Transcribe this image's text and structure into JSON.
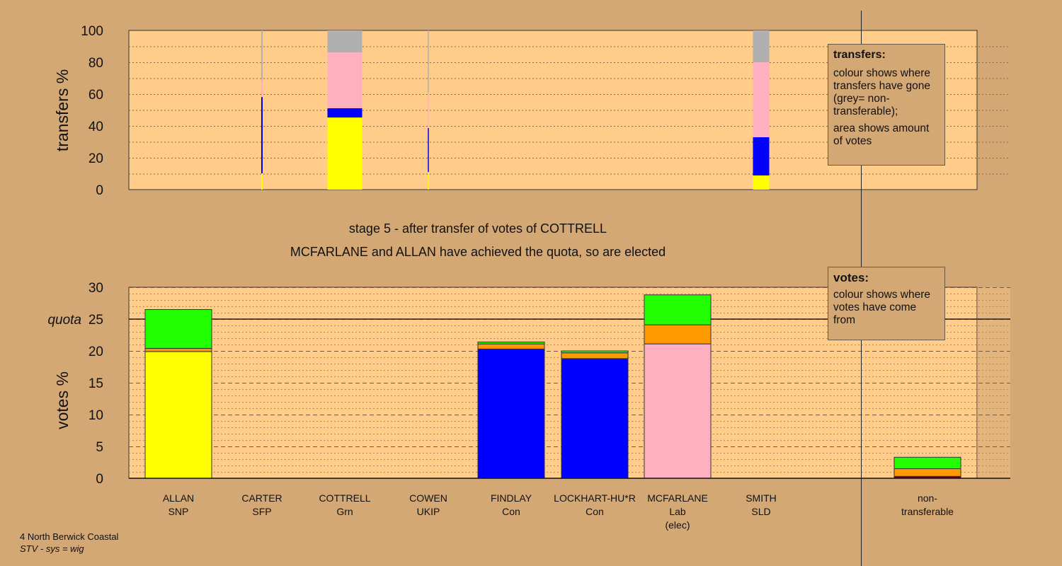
{
  "colors": {
    "bg": "#D4A875",
    "plot": "#FFCC8A",
    "SNP": "#FFFF00",
    "Con": "#0000FF",
    "Lab": "#FFB0C0",
    "Grn": "#22FF00",
    "Other": "#FF9900",
    "Nontrans": "#B0B0B0",
    "dark": "#5a0030"
  },
  "chart_data": [
    {
      "type": "bar",
      "title": "transfers",
      "ylabel": "transfers %",
      "ylim": [
        0,
        100
      ],
      "yticks": [
        0,
        20,
        40,
        60,
        80,
        100
      ],
      "note": "bar width shows amount of votes transferred",
      "bars": [
        {
          "candidate": "CARTER",
          "weight": 0.2,
          "segments": [
            {
              "to": "SNP",
              "value": 10.2
            },
            {
              "to": "Con",
              "value": 48
            },
            {
              "to": "Lab",
              "value": 10.8
            },
            {
              "to": "Nontrans",
              "value": 31
            }
          ]
        },
        {
          "candidate": "COTTRELL",
          "weight": 4.9,
          "segments": [
            {
              "to": "SNP",
              "value": 45.3
            },
            {
              "to": "Con",
              "value": 5.8
            },
            {
              "to": "Lab",
              "value": 35.1
            },
            {
              "to": "Nontrans",
              "value": 13.8
            }
          ]
        },
        {
          "candidate": "COWEN",
          "weight": 0.1,
          "segments": [
            {
              "to": "SNP",
              "value": 11
            },
            {
              "to": "Con",
              "value": 27.7
            },
            {
              "to": "Lab",
              "value": 22.3
            },
            {
              "to": "Nontrans",
              "value": 39
            }
          ]
        },
        {
          "candidate": "SMITH",
          "weight": 2.3,
          "segments": [
            {
              "to": "SNP",
              "value": 8.9
            },
            {
              "to": "Con",
              "value": 24
            },
            {
              "to": "Lab",
              "value": 47.1
            },
            {
              "to": "Nontrans",
              "value": 20
            }
          ]
        }
      ]
    },
    {
      "type": "bar",
      "title": "votes",
      "ylabel": "votes %",
      "ylim": [
        0,
        30
      ],
      "yticks": [
        0,
        5,
        10,
        15,
        20,
        25,
        30
      ],
      "quota": 25,
      "quota_label": "quota",
      "categories": [
        {
          "name": "ALLAN",
          "party": "SNP",
          "extra": "",
          "segments": [
            {
              "from": "SNP",
              "value": 19.9
            },
            {
              "from": "Other",
              "value": 0.5
            },
            {
              "from": "Grn",
              "value": 6.1
            }
          ]
        },
        {
          "name": "CARTER",
          "party": "SFP",
          "extra": "",
          "segments": []
        },
        {
          "name": "COTTRELL",
          "party": "Grn",
          "extra": "",
          "segments": []
        },
        {
          "name": "COWEN",
          "party": "UKIP",
          "extra": "",
          "segments": []
        },
        {
          "name": "FINDLAY",
          "party": "Con",
          "extra": "",
          "segments": [
            {
              "from": "Con",
              "value": 20.3
            },
            {
              "from": "Other",
              "value": 0.8
            },
            {
              "from": "Grn",
              "value": 0.3
            }
          ]
        },
        {
          "name": "LOCKHART-HU*R",
          "party": "Con",
          "extra": "",
          "segments": [
            {
              "from": "Con",
              "value": 18.8
            },
            {
              "from": "Other",
              "value": 0.9
            },
            {
              "from": "Grn",
              "value": 0.3
            }
          ]
        },
        {
          "name": "MCFARLANE",
          "party": "Lab",
          "extra": "(elec)",
          "segments": [
            {
              "from": "Lab",
              "value": 21.1
            },
            {
              "from": "Other",
              "value": 3.0
            },
            {
              "from": "Grn",
              "value": 4.7
            }
          ]
        },
        {
          "name": "SMITH",
          "party": "SLD",
          "extra": "",
          "segments": []
        },
        {
          "name": "non-",
          "party": "transferable",
          "extra": "",
          "segments": [
            {
              "from": "dark",
              "value": 0.3
            },
            {
              "from": "Other",
              "value": 1.2
            },
            {
              "from": "Grn",
              "value": 1.8
            }
          ]
        }
      ]
    }
  ],
  "stage_title": "stage 5 - after transfer of votes of COTTRELL",
  "stage_subtitle": "MCFARLANE and ALLAN have achieved the quota, so are elected",
  "legend_transfers": {
    "heading": "transfers:",
    "p1": "colour shows where transfers have gone (grey= non-transferable);",
    "p2": "area shows amount of votes"
  },
  "legend_votes": {
    "heading": "votes:",
    "p1": "colour shows where votes have come from"
  },
  "footer": {
    "ward": "4 North Berwick Coastal",
    "system": "STV - sys = wig"
  }
}
